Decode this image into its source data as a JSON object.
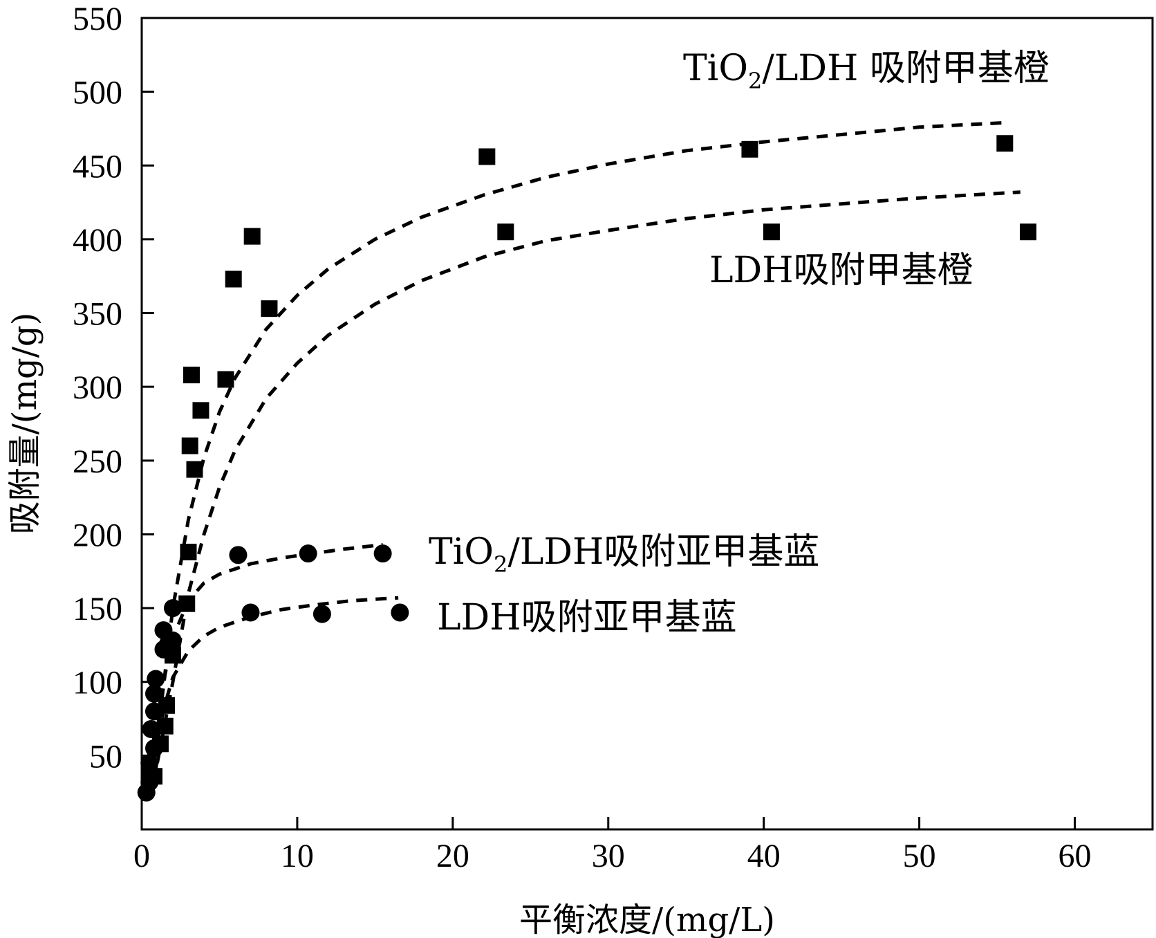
{
  "chart_data": {
    "type": "scatter",
    "xlabel": "平衡浓度/(mg/L)",
    "ylabel": "吸附量/(mg/g)",
    "xlim": [
      0,
      65
    ],
    "ylim": [
      0,
      550
    ],
    "x_ticks": [
      "0",
      "10",
      "20",
      "30",
      "40",
      "50",
      "60"
    ],
    "y_ticks": [
      "50",
      "100",
      "150",
      "200",
      "250",
      "300",
      "350",
      "400",
      "450",
      "500",
      "550"
    ],
    "series": [
      {
        "name": "TiO2/LDH吸附甲基橙",
        "label_main": "TiO",
        "label_sub": "2",
        "label_tail": "/LDH 吸附甲基橙",
        "marker": "square",
        "points": [
          [
            0.5,
            40
          ],
          [
            0.8,
            36
          ],
          [
            1.2,
            58
          ],
          [
            1.5,
            70
          ],
          [
            1.6,
            84
          ],
          [
            2.0,
            118
          ],
          [
            2.9,
            153
          ],
          [
            3.0,
            188
          ],
          [
            3.1,
            260
          ],
          [
            3.4,
            244
          ],
          [
            3.2,
            308
          ],
          [
            3.8,
            284
          ],
          [
            5.4,
            305
          ],
          [
            5.9,
            373
          ],
          [
            7.1,
            402
          ],
          [
            8.2,
            353
          ],
          [
            22.2,
            456
          ],
          [
            39.1,
            461
          ],
          [
            55.5,
            465
          ]
        ],
        "fit": [
          [
            1.0,
            62
          ],
          [
            2.0,
            150
          ],
          [
            3.0,
            210
          ],
          [
            4.0,
            252
          ],
          [
            5.0,
            283
          ],
          [
            6.0,
            306
          ],
          [
            8.0,
            339
          ],
          [
            10.0,
            362
          ],
          [
            12.0,
            380
          ],
          [
            15.0,
            400
          ],
          [
            18.0,
            415
          ],
          [
            22.0,
            430
          ],
          [
            26.0,
            442
          ],
          [
            30.0,
            451
          ],
          [
            35.0,
            460
          ],
          [
            40.0,
            466
          ],
          [
            45.0,
            471
          ],
          [
            50.0,
            476
          ],
          [
            55.5,
            479
          ]
        ]
      },
      {
        "name": "LDH吸附甲基橙",
        "label_main": "LDH吸附甲基橙",
        "marker": "square",
        "points": [
          [
            23.4,
            405
          ],
          [
            40.5,
            405
          ],
          [
            57.0,
            405
          ]
        ],
        "fit": [
          [
            1.0,
            45
          ],
          [
            2.0,
            100
          ],
          [
            3.0,
            160
          ],
          [
            4.0,
            200
          ],
          [
            5.0,
            232
          ],
          [
            6.0,
            257
          ],
          [
            8.0,
            292
          ],
          [
            10.0,
            316
          ],
          [
            12.0,
            335
          ],
          [
            15.0,
            356
          ],
          [
            18.0,
            372
          ],
          [
            22.0,
            388
          ],
          [
            26.0,
            399
          ],
          [
            30.0,
            406
          ],
          [
            35.0,
            414
          ],
          [
            40.0,
            420
          ],
          [
            45.0,
            424
          ],
          [
            50.0,
            428
          ],
          [
            56.5,
            432
          ]
        ]
      },
      {
        "name": "TiO2/LDH吸附亚甲基蓝",
        "label_main": "TiO",
        "label_sub": "2",
        "label_tail": "/LDH吸附亚甲基蓝",
        "marker": "circle",
        "points": [
          [
            0.5,
            32
          ],
          [
            0.8,
            55
          ],
          [
            0.8,
            92
          ],
          [
            0.9,
            102
          ],
          [
            1.4,
            135
          ],
          [
            2.0,
            150
          ],
          [
            2.0,
            128
          ],
          [
            6.2,
            186
          ],
          [
            10.7,
            187
          ],
          [
            15.5,
            187
          ]
        ],
        "fit": [
          [
            0.9,
            62
          ],
          [
            1.5,
            105
          ],
          [
            2.0,
            130
          ],
          [
            3.0,
            155
          ],
          [
            4.0,
            167
          ],
          [
            5.0,
            173
          ],
          [
            7.0,
            180
          ],
          [
            9.0,
            184
          ],
          [
            11.0,
            187
          ],
          [
            13.0,
            190
          ],
          [
            15.5,
            193
          ]
        ]
      },
      {
        "name": "LDH吸附亚甲基蓝",
        "label_main": "LDH吸附亚甲基蓝",
        "marker": "circle",
        "points": [
          [
            0.3,
            25
          ],
          [
            0.5,
            45
          ],
          [
            0.6,
            68
          ],
          [
            0.8,
            80
          ],
          [
            1.4,
            122
          ],
          [
            1.7,
            126
          ],
          [
            7.0,
            147
          ],
          [
            11.6,
            146
          ],
          [
            16.6,
            147
          ]
        ],
        "fit": [
          [
            0.8,
            50
          ],
          [
            1.5,
            85
          ],
          [
            2.0,
            103
          ],
          [
            3.0,
            121
          ],
          [
            4.0,
            131
          ],
          [
            5.0,
            137
          ],
          [
            7.0,
            144
          ],
          [
            9.0,
            149
          ],
          [
            11.0,
            152
          ],
          [
            13.5,
            155
          ],
          [
            16.5,
            157
          ]
        ]
      }
    ]
  }
}
